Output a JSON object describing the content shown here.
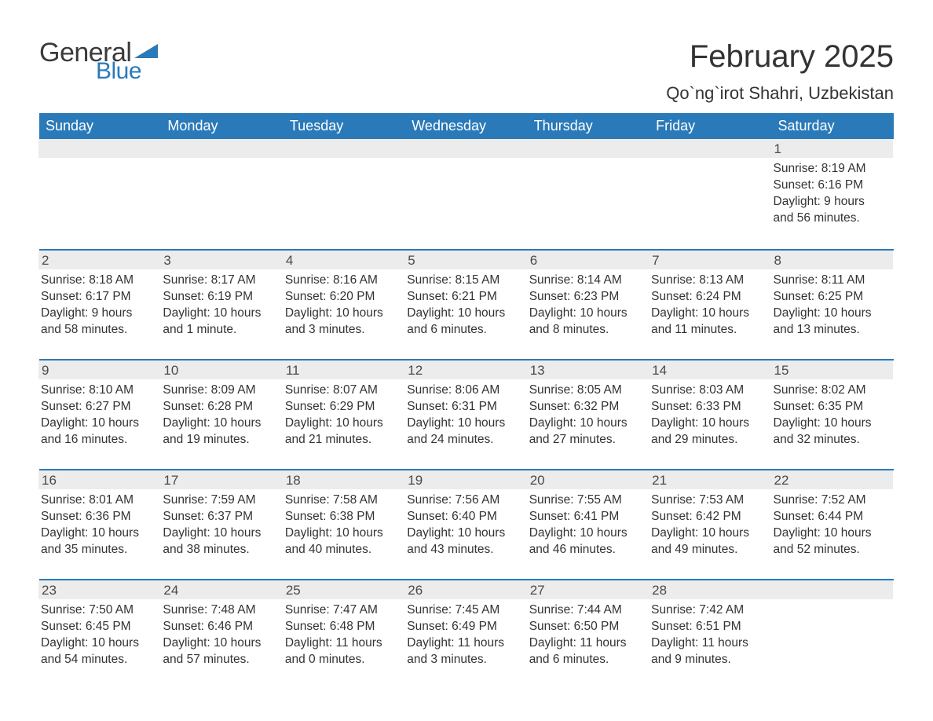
{
  "logo": {
    "text1": "General",
    "text2": "Blue",
    "tri_color": "#2a7ab9"
  },
  "title": "February 2025",
  "location": "Qo`ng`irot Shahri, Uzbekistan",
  "colors": {
    "header_bg": "#2a7ab9",
    "header_text": "#ffffff",
    "strip_bg": "#ececec",
    "rule": "#2a7ab9",
    "body_text": "#333333"
  },
  "fonts": {
    "title_pt": 40,
    "location_pt": 22,
    "dow_pt": 18,
    "daynum_pt": 17,
    "body_pt": 15.5
  },
  "days_of_week": [
    "Sunday",
    "Monday",
    "Tuesday",
    "Wednesday",
    "Thursday",
    "Friday",
    "Saturday"
  ],
  "labels": {
    "sunrise": "Sunrise:",
    "sunset": "Sunset:",
    "daylight": "Daylight:"
  },
  "weeks": [
    [
      null,
      null,
      null,
      null,
      null,
      null,
      {
        "n": "1",
        "sunrise": "8:19 AM",
        "sunset": "6:16 PM",
        "daylight": "9 hours and 56 minutes."
      }
    ],
    [
      {
        "n": "2",
        "sunrise": "8:18 AM",
        "sunset": "6:17 PM",
        "daylight": "9 hours and 58 minutes."
      },
      {
        "n": "3",
        "sunrise": "8:17 AM",
        "sunset": "6:19 PM",
        "daylight": "10 hours and 1 minute."
      },
      {
        "n": "4",
        "sunrise": "8:16 AM",
        "sunset": "6:20 PM",
        "daylight": "10 hours and 3 minutes."
      },
      {
        "n": "5",
        "sunrise": "8:15 AM",
        "sunset": "6:21 PM",
        "daylight": "10 hours and 6 minutes."
      },
      {
        "n": "6",
        "sunrise": "8:14 AM",
        "sunset": "6:23 PM",
        "daylight": "10 hours and 8 minutes."
      },
      {
        "n": "7",
        "sunrise": "8:13 AM",
        "sunset": "6:24 PM",
        "daylight": "10 hours and 11 minutes."
      },
      {
        "n": "8",
        "sunrise": "8:11 AM",
        "sunset": "6:25 PM",
        "daylight": "10 hours and 13 minutes."
      }
    ],
    [
      {
        "n": "9",
        "sunrise": "8:10 AM",
        "sunset": "6:27 PM",
        "daylight": "10 hours and 16 minutes."
      },
      {
        "n": "10",
        "sunrise": "8:09 AM",
        "sunset": "6:28 PM",
        "daylight": "10 hours and 19 minutes."
      },
      {
        "n": "11",
        "sunrise": "8:07 AM",
        "sunset": "6:29 PM",
        "daylight": "10 hours and 21 minutes."
      },
      {
        "n": "12",
        "sunrise": "8:06 AM",
        "sunset": "6:31 PM",
        "daylight": "10 hours and 24 minutes."
      },
      {
        "n": "13",
        "sunrise": "8:05 AM",
        "sunset": "6:32 PM",
        "daylight": "10 hours and 27 minutes."
      },
      {
        "n": "14",
        "sunrise": "8:03 AM",
        "sunset": "6:33 PM",
        "daylight": "10 hours and 29 minutes."
      },
      {
        "n": "15",
        "sunrise": "8:02 AM",
        "sunset": "6:35 PM",
        "daylight": "10 hours and 32 minutes."
      }
    ],
    [
      {
        "n": "16",
        "sunrise": "8:01 AM",
        "sunset": "6:36 PM",
        "daylight": "10 hours and 35 minutes."
      },
      {
        "n": "17",
        "sunrise": "7:59 AM",
        "sunset": "6:37 PM",
        "daylight": "10 hours and 38 minutes."
      },
      {
        "n": "18",
        "sunrise": "7:58 AM",
        "sunset": "6:38 PM",
        "daylight": "10 hours and 40 minutes."
      },
      {
        "n": "19",
        "sunrise": "7:56 AM",
        "sunset": "6:40 PM",
        "daylight": "10 hours and 43 minutes."
      },
      {
        "n": "20",
        "sunrise": "7:55 AM",
        "sunset": "6:41 PM",
        "daylight": "10 hours and 46 minutes."
      },
      {
        "n": "21",
        "sunrise": "7:53 AM",
        "sunset": "6:42 PM",
        "daylight": "10 hours and 49 minutes."
      },
      {
        "n": "22",
        "sunrise": "7:52 AM",
        "sunset": "6:44 PM",
        "daylight": "10 hours and 52 minutes."
      }
    ],
    [
      {
        "n": "23",
        "sunrise": "7:50 AM",
        "sunset": "6:45 PM",
        "daylight": "10 hours and 54 minutes."
      },
      {
        "n": "24",
        "sunrise": "7:48 AM",
        "sunset": "6:46 PM",
        "daylight": "10 hours and 57 minutes."
      },
      {
        "n": "25",
        "sunrise": "7:47 AM",
        "sunset": "6:48 PM",
        "daylight": "11 hours and 0 minutes."
      },
      {
        "n": "26",
        "sunrise": "7:45 AM",
        "sunset": "6:49 PM",
        "daylight": "11 hours and 3 minutes."
      },
      {
        "n": "27",
        "sunrise": "7:44 AM",
        "sunset": "6:50 PM",
        "daylight": "11 hours and 6 minutes."
      },
      {
        "n": "28",
        "sunrise": "7:42 AM",
        "sunset": "6:51 PM",
        "daylight": "11 hours and 9 minutes."
      },
      null
    ]
  ]
}
